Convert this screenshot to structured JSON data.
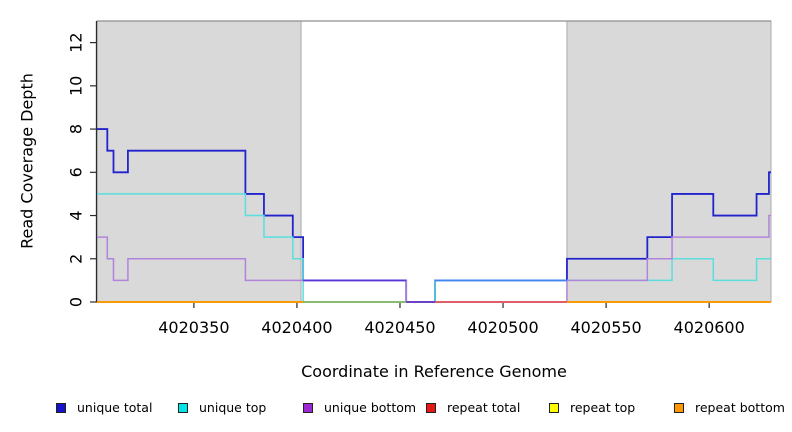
{
  "chart_data": {
    "type": "line",
    "subtype": "step-after-coverage",
    "title": "",
    "xlabel": "Coordinate in Reference Genome",
    "ylabel": "Read Coverage Depth",
    "xlim": [
      4020303,
      4020630
    ],
    "ylim": [
      0,
      13
    ],
    "grid": false,
    "x_ticks": {
      "values": [
        4020350,
        4020400,
        4020450,
        4020500,
        4020550,
        4020600
      ],
      "labels": [
        "4020350",
        "4020400",
        "4020450",
        "4020500",
        "4020550",
        "4020600"
      ]
    },
    "y_ticks": {
      "values": [
        0,
        2,
        4,
        6,
        8,
        10,
        12
      ],
      "labels": [
        "0",
        "2",
        "4",
        "6",
        "8",
        "10",
        "12"
      ]
    },
    "shaded_regions": [
      {
        "name": "repeat-region-left",
        "x0": 4020303,
        "x1": 4020402,
        "fill": "#d9d9d9",
        "stroke": "#ababab"
      },
      {
        "name": "repeat-region-right",
        "x0": 4020531,
        "x1": 4020630,
        "fill": "#d9d9d9",
        "stroke": "#ababab"
      }
    ],
    "top_border_color": "#8f8f8f",
    "axis_color": "#2b2b2b",
    "series": [
      {
        "name": "repeat total",
        "color": "#cc2222",
        "width": 1.5,
        "steps": [
          [
            4020303,
            0
          ],
          [
            4020630,
            0
          ]
        ]
      },
      {
        "name": "repeat top",
        "color": "#eeee00",
        "width": 1.5,
        "steps": [
          [
            4020303,
            0
          ],
          [
            4020630,
            0
          ]
        ]
      },
      {
        "name": "unique total",
        "color": "#2323cd",
        "width": 1.8,
        "steps": [
          [
            4020303,
            8
          ],
          [
            4020308,
            7
          ],
          [
            4020311,
            6
          ],
          [
            4020318,
            7
          ],
          [
            4020375,
            5
          ],
          [
            4020384,
            4
          ],
          [
            4020398,
            3
          ],
          [
            4020403,
            1
          ],
          [
            4020453,
            0
          ],
          [
            4020467,
            1
          ],
          [
            4020531,
            2
          ],
          [
            4020570,
            3
          ],
          [
            4020582,
            5
          ],
          [
            4020602,
            4
          ],
          [
            4020623,
            5
          ],
          [
            4020629,
            6
          ],
          [
            4020630,
            6
          ]
        ]
      },
      {
        "name": "unique top",
        "color": "#5adede",
        "width": 1.5,
        "steps": [
          [
            4020303,
            5
          ],
          [
            4020375,
            4
          ],
          [
            4020384,
            3
          ],
          [
            4020398,
            2
          ],
          [
            4020403,
            0
          ],
          [
            4020467,
            1
          ],
          [
            4020582,
            2
          ],
          [
            4020602,
            1
          ],
          [
            4020623,
            2
          ],
          [
            4020630,
            2
          ]
        ]
      },
      {
        "name": "unique bottom",
        "color": "#b184dc",
        "width": 1.5,
        "steps": [
          [
            4020303,
            3
          ],
          [
            4020308,
            2
          ],
          [
            4020311,
            1
          ],
          [
            4020318,
            2
          ],
          [
            4020375,
            1
          ],
          [
            4020453,
            0
          ],
          [
            4020531,
            1
          ],
          [
            4020570,
            2
          ],
          [
            4020582,
            3
          ],
          [
            4020629,
            4
          ],
          [
            4020630,
            4
          ]
        ]
      },
      {
        "name": "repeat bottom",
        "color": "#ff9800",
        "width": 1.8,
        "steps": [
          [
            4020303,
            0
          ],
          [
            4020630,
            0
          ]
        ]
      }
    ],
    "overlap_segments": [
      {
        "note": "blue+purple overlap at depth 1",
        "x0": 4020403,
        "x1": 4020453,
        "y": 1,
        "color": "#5a35d8",
        "width": 1.8
      },
      {
        "note": "blue+cyan overlap at depth 1",
        "x0": 4020467,
        "x1": 4020531,
        "y": 1,
        "color": "#3f86f0",
        "width": 1.8
      },
      {
        "note": "cyan+yellow+orange blend at 0",
        "x0": 4020403,
        "x1": 4020453,
        "y": 0,
        "color": "#7cbf7c",
        "width": 1.8
      },
      {
        "note": "blue+purple blend at 0",
        "x0": 4020453,
        "x1": 4020467,
        "y": 0,
        "color": "#5a35d8",
        "width": 1.8
      },
      {
        "note": "red+purple blend at 0",
        "x0": 4020467,
        "x1": 4020531,
        "y": 0,
        "color": "#dd5577",
        "width": 1.8
      }
    ]
  },
  "legend": {
    "items": [
      {
        "label": "unique total",
        "color": "#1414cc"
      },
      {
        "label": "unique top",
        "color": "#00e6e6"
      },
      {
        "label": "unique bottom",
        "color": "#9a2bd0"
      },
      {
        "label": "repeat total",
        "color": "#e81717"
      },
      {
        "label": "repeat top",
        "color": "#ffff00"
      },
      {
        "label": "repeat bottom",
        "color": "#ff9800"
      }
    ]
  }
}
